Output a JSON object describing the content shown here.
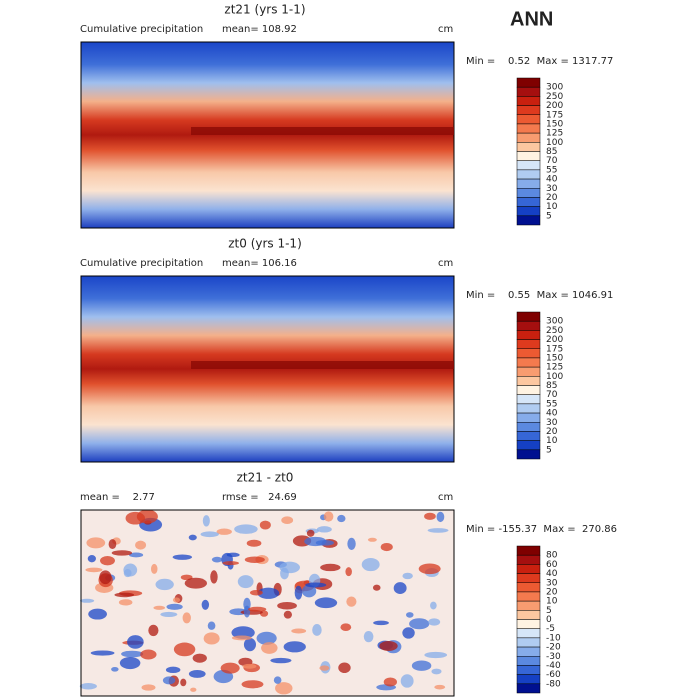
{
  "header": {
    "season": "ANN"
  },
  "panels": [
    {
      "title": "zt21 (yrs 1-1)",
      "subtitle": "Cumulative precipitation",
      "stats": [
        "mean= 108.92"
      ],
      "units": "cm",
      "range": "Min =    0.52  Max = 1317.77",
      "colorbar": {
        "labels": [
          300,
          250,
          200,
          175,
          150,
          125,
          100,
          85,
          70,
          55,
          40,
          30,
          20,
          10,
          5
        ],
        "colors": [
          "#7f0000",
          "#a50f0f",
          "#c9200f",
          "#de3a1e",
          "#ec5a32",
          "#f47a4e",
          "#f89c70",
          "#fcc7a0",
          "#fff3e2",
          "#d6e6f8",
          "#b0ccf1",
          "#86acea",
          "#5b89e0",
          "#3666d6",
          "#1540c4",
          "#001090"
        ]
      }
    },
    {
      "title": "zt0 (yrs 1-1)",
      "subtitle": "Cumulative precipitation",
      "stats": [
        "mean= 106.16"
      ],
      "units": "cm",
      "range": "Min =    0.55  Max = 1046.91",
      "colorbar": {
        "labels": [
          300,
          250,
          200,
          175,
          150,
          125,
          100,
          85,
          70,
          55,
          40,
          30,
          20,
          10,
          5
        ],
        "colors": [
          "#7f0000",
          "#a50f0f",
          "#c9200f",
          "#de3a1e",
          "#ec5a32",
          "#f47a4e",
          "#f89c70",
          "#fcc7a0",
          "#fff3e2",
          "#d6e6f8",
          "#b0ccf1",
          "#86acea",
          "#5b89e0",
          "#3666d6",
          "#1540c4",
          "#001090"
        ]
      }
    },
    {
      "title": "zt21 - zt0",
      "stats": [
        "mean =    2.77",
        "rmse =   24.69"
      ],
      "units": "cm",
      "range": "Min = -155.37  Max =  270.86",
      "colorbar": {
        "labels": [
          80,
          60,
          40,
          30,
          20,
          10,
          5,
          0,
          -5,
          -10,
          -20,
          -30,
          -40,
          -60,
          -80
        ],
        "colors": [
          "#7f0000",
          "#a50f0f",
          "#c9200f",
          "#de3a1e",
          "#ec5a32",
          "#f47a4e",
          "#f89c70",
          "#fcc7a0",
          "#fff3e2",
          "#d6e6f8",
          "#b0ccf1",
          "#86acea",
          "#5b89e0",
          "#3666d6",
          "#1540c4",
          "#001090"
        ]
      }
    }
  ]
}
